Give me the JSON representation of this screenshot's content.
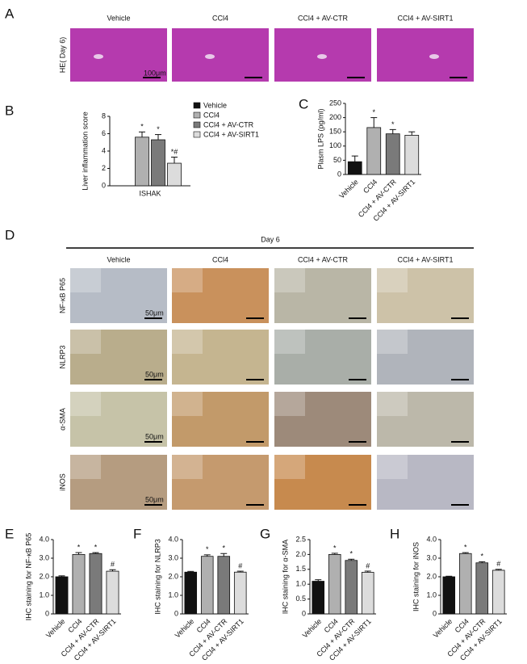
{
  "panel_letters": [
    "A",
    "B",
    "C",
    "D",
    "E",
    "F",
    "G",
    "H"
  ],
  "panel_a": {
    "row_label": "HE( Day 6)",
    "columns": [
      "Vehicle",
      "CCl4",
      "CCl4 + AV-CTR",
      "CCl4 + AV-SIRT1"
    ],
    "scale_bar": "100μm"
  },
  "panel_d": {
    "header": "Day 6",
    "columns": [
      "Vehicle",
      "CCl4",
      "CCl4 + AV-CTR",
      "CCl4 + AV-SIRT1"
    ],
    "rows": [
      "NF-κB P65",
      "NLRP3",
      "α-SMA",
      "iNOS"
    ],
    "scale_bar": "50μm"
  },
  "chart_data": [
    {
      "type": "bar",
      "y_label": "Liver inflammation score",
      "categories": [
        "ISHAK"
      ],
      "series": [
        {
          "name": "Vehicle",
          "color": "#111111",
          "values": [
            0
          ],
          "errors": [
            null
          ],
          "annotations": [
            null
          ]
        },
        {
          "name": "CCl4",
          "color": "#b0b0b0",
          "values": [
            5.6
          ],
          "errors": [
            0.6
          ],
          "annotations": [
            "*"
          ]
        },
        {
          "name": "CCl4 + AV-CTR",
          "color": "#7a7a7a",
          "values": [
            5.3
          ],
          "errors": [
            0.6
          ],
          "annotations": [
            "*"
          ]
        },
        {
          "name": "CCl4 + AV-SIRT1",
          "color": "#dcdcdc",
          "values": [
            2.6
          ],
          "errors": [
            0.7
          ],
          "annotations": [
            "*#"
          ]
        }
      ],
      "ylim": [
        0,
        8
      ],
      "yticks": [
        0,
        2,
        4,
        6,
        8
      ]
    },
    {
      "type": "bar",
      "y_label": "Plasm LPS (pg/ml)",
      "categories": [
        "Vehicle",
        "CCl4",
        "CCl4 + AV-CTR",
        "CCl4 + AV-SIRT1"
      ],
      "values": [
        45,
        165,
        143,
        138
      ],
      "errors": [
        20,
        35,
        15,
        12
      ],
      "annotations": [
        null,
        "*",
        "*",
        null
      ],
      "colors": [
        "#111111",
        "#b0b0b0",
        "#7a7a7a",
        "#dcdcdc"
      ],
      "ylim": [
        0,
        250
      ],
      "yticks": [
        0,
        50,
        100,
        150,
        200,
        250
      ]
    },
    {
      "type": "bar",
      "y_label": "IHC staining for NF-κB P65",
      "categories": [
        "Vehicle",
        "CCl4",
        "CCl4 + AV-CTR",
        "CCl4 + AV-SIRT1"
      ],
      "values": [
        2.0,
        3.2,
        3.25,
        2.3
      ],
      "errors": [
        0.05,
        0.1,
        0.05,
        0.08
      ],
      "annotations": [
        null,
        "*",
        "*",
        "#"
      ],
      "colors": [
        "#111111",
        "#b0b0b0",
        "#7a7a7a",
        "#dcdcdc"
      ],
      "ylim": [
        0,
        4
      ],
      "yticks": [
        0,
        {
          "value": 1,
          "label": "1.0"
        },
        {
          "value": 2,
          "label": "2.0"
        },
        {
          "value": 3,
          "label": "3.0"
        },
        {
          "value": 4,
          "label": "4.0"
        }
      ]
    },
    {
      "type": "bar",
      "y_label": "IHC staining for NLRP3",
      "categories": [
        "Vehicle",
        "CCl4",
        "CCl4 + AV-CTR",
        "CCl4 + AV-SIRT1"
      ],
      "values": [
        2.25,
        3.1,
        3.1,
        2.25
      ],
      "errors": [
        0.04,
        0.08,
        0.15,
        0.05
      ],
      "annotations": [
        null,
        "*",
        "*",
        "#"
      ],
      "colors": [
        "#111111",
        "#b0b0b0",
        "#7a7a7a",
        "#dcdcdc"
      ],
      "ylim": [
        0,
        4
      ],
      "yticks": [
        0,
        {
          "value": 1,
          "label": "1.0"
        },
        {
          "value": 2,
          "label": "2.0"
        },
        {
          "value": 3,
          "label": "3.0"
        },
        {
          "value": 4,
          "label": "4.0"
        }
      ]
    },
    {
      "type": "bar",
      "y_label": "IHC staining for α-SMA",
      "categories": [
        "Vehicle",
        "CCl4",
        "CCl4 + AV-CTR",
        "CCl4 + AV-SIRT1"
      ],
      "values": [
        1.1,
        2.0,
        1.8,
        1.4
      ],
      "errors": [
        0.05,
        0.04,
        0.04,
        0.04
      ],
      "annotations": [
        null,
        "*",
        "*",
        "#"
      ],
      "colors": [
        "#111111",
        "#b0b0b0",
        "#7a7a7a",
        "#dcdcdc"
      ],
      "ylim": [
        0,
        2.5
      ],
      "yticks": [
        0,
        0.5,
        {
          "value": 1,
          "label": "1.0"
        },
        1.5,
        {
          "value": 2,
          "label": "2.0"
        },
        2.5
      ]
    },
    {
      "type": "bar",
      "y_label": "IHC staining for iNOS",
      "categories": [
        "Vehicle",
        "CCl4",
        "CCl4 + AV-CTR",
        "CCl4 + AV-SIRT1"
      ],
      "values": [
        2.0,
        3.25,
        2.75,
        2.35
      ],
      "errors": [
        0.03,
        0.05,
        0.06,
        0.05
      ],
      "annotations": [
        null,
        "*",
        "*",
        "#"
      ],
      "colors": [
        "#111111",
        "#b0b0b0",
        "#7a7a7a",
        "#dcdcdc"
      ],
      "ylim": [
        0,
        4
      ],
      "yticks": [
        0,
        {
          "value": 1,
          "label": "1.0"
        },
        {
          "value": 2,
          "label": "2.0"
        },
        {
          "value": 3,
          "label": "3.0"
        },
        {
          "value": 4,
          "label": "4.0"
        }
      ]
    }
  ]
}
